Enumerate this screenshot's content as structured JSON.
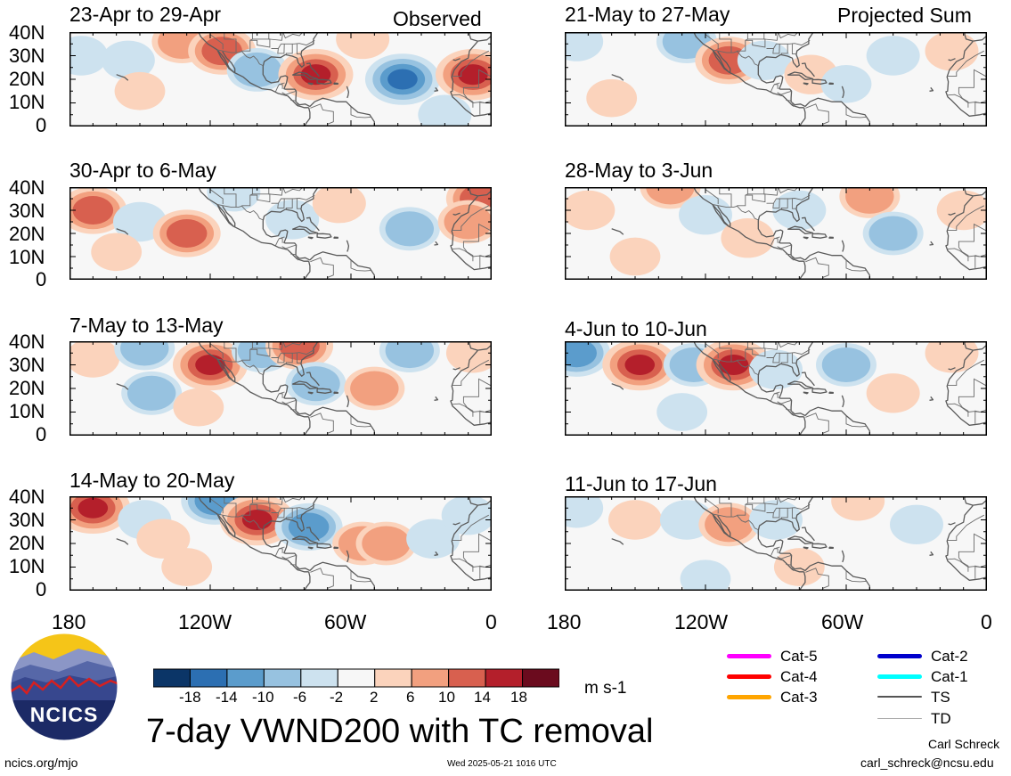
{
  "header": {
    "left_tag": "Observed",
    "right_tag": "Projected Sum"
  },
  "panels_left": [
    {
      "label": "23-Apr to 29-Apr"
    },
    {
      "label": "30-Apr to 6-May"
    },
    {
      "label": "7-May to 13-May"
    },
    {
      "label": "14-May to 20-May"
    }
  ],
  "panels_right": [
    {
      "label": "21-May to 27-May"
    },
    {
      "label": "28-May to 3-Jun"
    },
    {
      "label": "4-Jun to 10-Jun"
    },
    {
      "label": "11-Jun to 17-Jun"
    }
  ],
  "y_ticks": [
    "40N",
    "30N",
    "20N",
    "10N",
    "0"
  ],
  "x_ticks": [
    "180",
    "120W",
    "60W",
    "0"
  ],
  "colorbar": {
    "labels": [
      "-18",
      "-14",
      "-10",
      "-6",
      "-2",
      "2",
      "6",
      "10",
      "14",
      "18"
    ],
    "colors": [
      "#0b3567",
      "#2c6fb2",
      "#5b9ccc",
      "#97c2e0",
      "#cde2ef",
      "#f7f7f7",
      "#fbd3bc",
      "#f2a07f",
      "#d8604f",
      "#b41f2b",
      "#6b0b1e"
    ],
    "unit": "m s-1"
  },
  "title": "7-day VWND200 with TC removal",
  "logo": {
    "text": "NCICS"
  },
  "footer": {
    "url": "ncics.org/mjo",
    "timestamp": "Wed 2025-05-21 1016 UTC",
    "author": "Carl Schreck",
    "email": "carl_schreck@ncsu.edu"
  },
  "tc_legend": [
    {
      "label": "Cat-5",
      "color": "#ff00ff"
    },
    {
      "label": "Cat-4",
      "color": "#ff0000"
    },
    {
      "label": "Cat-3",
      "color": "#ffa500"
    },
    {
      "label": "Cat-2",
      "color": "#0000cc"
    },
    {
      "label": "Cat-1",
      "color": "#00ffff"
    },
    {
      "label": "TS",
      "color": "#555555"
    },
    {
      "label": "TD",
      "color": "#aaaaaa"
    }
  ],
  "anomalies": {
    "left": [
      [
        [
          -175,
          30,
          -1
        ],
        [
          -155,
          28,
          -1
        ],
        [
          -132,
          36,
          2
        ],
        [
          -115,
          32,
          3
        ],
        [
          -100,
          24,
          -2
        ],
        [
          -75,
          22,
          4
        ],
        [
          -55,
          37,
          1
        ],
        [
          -38,
          20,
          -4
        ],
        [
          -8,
          22,
          4
        ],
        [
          -20,
          5,
          -1
        ],
        [
          -150,
          15,
          0.6
        ]
      ],
      [
        [
          -170,
          30,
          3
        ],
        [
          -150,
          25,
          -1
        ],
        [
          -130,
          20,
          3
        ],
        [
          -110,
          38,
          -1
        ],
        [
          -85,
          26,
          -1
        ],
        [
          -65,
          33,
          1
        ],
        [
          -35,
          22,
          -2
        ],
        [
          -5,
          35,
          3
        ],
        [
          -10,
          25,
          2
        ],
        [
          -160,
          12,
          0.6
        ]
      ],
      [
        [
          -170,
          33,
          1
        ],
        [
          -148,
          37,
          -2
        ],
        [
          -145,
          18,
          -2
        ],
        [
          -120,
          30,
          4
        ],
        [
          -98,
          36,
          -2
        ],
        [
          -82,
          38,
          3
        ],
        [
          -75,
          22,
          -2
        ],
        [
          -50,
          20,
          2
        ],
        [
          -35,
          36,
          -2
        ],
        [
          -8,
          35,
          1
        ],
        [
          -125,
          12,
          0.6
        ]
      ],
      [
        [
          -170,
          35,
          4
        ],
        [
          -148,
          30,
          -1
        ],
        [
          -140,
          22,
          1
        ],
        [
          -118,
          38,
          -3
        ],
        [
          -100,
          30,
          4
        ],
        [
          -78,
          27,
          -3
        ],
        [
          -55,
          20,
          2
        ],
        [
          -45,
          20,
          2
        ],
        [
          -25,
          22,
          -1
        ],
        [
          -130,
          10,
          0.6
        ],
        [
          -10,
          32,
          -1
        ]
      ]
    ],
    "right": [
      [
        [
          -175,
          36,
          -1
        ],
        [
          -128,
          36,
          -2
        ],
        [
          -110,
          28,
          3
        ],
        [
          -95,
          28,
          -1
        ],
        [
          -75,
          22,
          1
        ],
        [
          -40,
          30,
          -1
        ],
        [
          -15,
          32,
          1
        ],
        [
          -160,
          12,
          0.6
        ],
        [
          -60,
          18,
          -0.6
        ]
      ],
      [
        [
          -170,
          30,
          1
        ],
        [
          -135,
          40,
          2
        ],
        [
          -120,
          28,
          -1
        ],
        [
          -102,
          18,
          1
        ],
        [
          -80,
          30,
          -1
        ],
        [
          -50,
          36,
          2
        ],
        [
          -40,
          20,
          -2
        ],
        [
          -10,
          30,
          1
        ],
        [
          -150,
          10,
          0.6
        ]
      ],
      [
        [
          -175,
          35,
          -3
        ],
        [
          -148,
          30,
          4
        ],
        [
          -125,
          30,
          -2
        ],
        [
          -108,
          30,
          4
        ],
        [
          -90,
          28,
          -1
        ],
        [
          -60,
          30,
          -2
        ],
        [
          -40,
          18,
          1
        ],
        [
          -15,
          35,
          1
        ],
        [
          -130,
          10,
          -0.6
        ]
      ],
      [
        [
          -175,
          35,
          -1
        ],
        [
          -150,
          30,
          1
        ],
        [
          -128,
          30,
          -1
        ],
        [
          -110,
          28,
          2
        ],
        [
          -90,
          30,
          -1
        ],
        [
          -55,
          38,
          1
        ],
        [
          -30,
          28,
          -1
        ],
        [
          -120,
          5,
          -0.6
        ],
        [
          -80,
          10,
          0.6
        ]
      ]
    ]
  }
}
